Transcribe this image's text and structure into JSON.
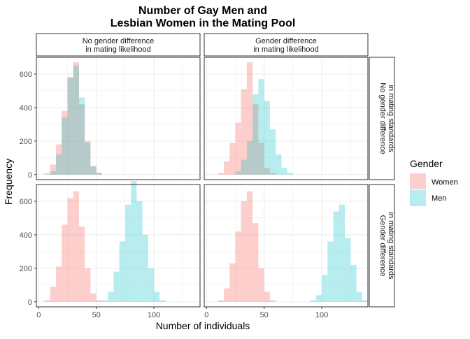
{
  "chart_data": {
    "type": "histogram",
    "title_lines": [
      "Number of Gay Men and",
      "Lesbian Women in the Mating Pool"
    ],
    "xlabel": "Number of individuals",
    "ylabel": "Frequency",
    "bin_width": 5,
    "xlim": [
      -2,
      140
    ],
    "ylim": [
      -30,
      700
    ],
    "x_ticks": [
      0,
      50,
      100
    ],
    "y_ticks": [
      0,
      200,
      400,
      600
    ],
    "grid": true,
    "legend": {
      "title": "Gender",
      "position": "right",
      "items": [
        {
          "label": "Women",
          "color": "#F8766D"
        },
        {
          "label": "Men",
          "color": "#00BFC4"
        }
      ]
    },
    "column_strips": [
      [
        "No gender difference",
        "in mating likelihood"
      ],
      [
        "Gender difference",
        "in mating likelihood"
      ]
    ],
    "row_strips": [
      [
        "No gender difference",
        "in mating standards"
      ],
      [
        "Gender difference",
        "in mating standards"
      ]
    ],
    "series": [
      {
        "name": "Women",
        "color": "#F8766D",
        "opacity": 0.35
      },
      {
        "name": "Men",
        "color": "#00BFC4",
        "opacity": 0.28
      }
    ],
    "panels": [
      {
        "row": 0,
        "col": 0,
        "women": {
          "start": 5,
          "counts": [
            10,
            60,
            180,
            380,
            580,
            670,
            420,
            200,
            50,
            10
          ]
        },
        "men": {
          "start": 10,
          "counts": [
            20,
            120,
            340,
            580,
            650,
            460,
            190,
            50,
            10
          ]
        }
      },
      {
        "row": 0,
        "col": 1,
        "women": {
          "start": 10,
          "counts": [
            10,
            80,
            190,
            310,
            510,
            670,
            420,
            190,
            40,
            10
          ]
        },
        "men": {
          "start": 25,
          "counts": [
            20,
            90,
            200,
            480,
            570,
            440,
            270,
            120,
            40,
            10
          ]
        }
      },
      {
        "row": 1,
        "col": 0,
        "women": {
          "start": 5,
          "counts": [
            10,
            90,
            210,
            460,
            620,
            660,
            450,
            200,
            50,
            10
          ]
        },
        "men": {
          "start": 55,
          "counts": [
            10,
            60,
            180,
            360,
            580,
            720,
            600,
            400,
            200,
            60,
            10
          ]
        }
      },
      {
        "row": 1,
        "col": 1,
        "women": {
          "start": 10,
          "counts": [
            10,
            80,
            230,
            420,
            600,
            660,
            470,
            200,
            60,
            10
          ]
        },
        "men": {
          "start": 90,
          "counts": [
            10,
            40,
            160,
            360,
            540,
            580,
            380,
            220,
            60,
            10
          ]
        }
      }
    ]
  }
}
